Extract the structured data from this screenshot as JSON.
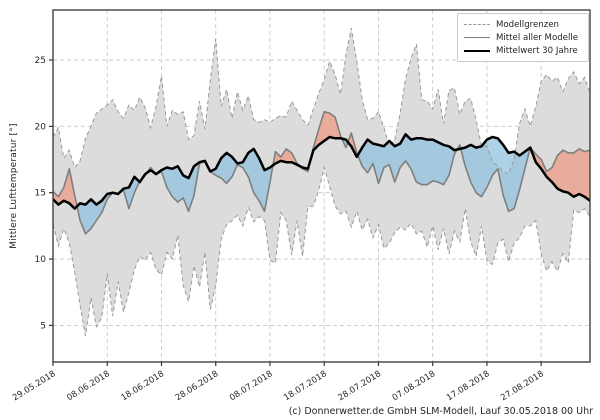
{
  "caption": "(c) Donnerwetter.de GmbH SLM-Modell, Lauf 30.05.2018 00 Uhr",
  "y_axis_label": "Mittlere Lufttemperatur [°]",
  "legend": {
    "items": [
      {
        "label": "Modellgrenzen",
        "style": "dashed-gray"
      },
      {
        "label": "Mittel aller Modelle",
        "style": "solid-gray"
      },
      {
        "label": "Mittelwert 30 Jahre",
        "style": "solid-black"
      }
    ]
  },
  "chart_data": {
    "type": "area",
    "title": "",
    "xlabel": "",
    "ylabel": "Mittlere Lufttemperatur [°]",
    "x_start_date": "29.05.2018",
    "x_tick_labels": [
      "29.05.2018",
      "08.06.2018",
      "18.06.2018",
      "28.06.2018",
      "08.07.2018",
      "18.07.2018",
      "28.07.2018",
      "07.08.2018",
      "17.08.2018",
      "27.08.2018"
    ],
    "x_tick_days": [
      0,
      10,
      20,
      30,
      40,
      50,
      60,
      70,
      80,
      90
    ],
    "xlim_days": [
      0,
      99
    ],
    "yticks": [
      5,
      10,
      15,
      20,
      25
    ],
    "ylim": [
      2.2,
      28.8
    ],
    "grid": true,
    "legend_position": "upper right",
    "colors": {
      "band": "#dcdcdc",
      "boundary": "#999999",
      "mean": "#7f7f7f",
      "mean30": "#000000",
      "above_normal": "#ee9c86",
      "below_normal": "#92c2dd",
      "grid": "#c9c9c9",
      "axis": "#333333"
    },
    "series": [
      {
        "name": "Modellgrenzen (oben)",
        "role": "max",
        "values": [
          19.2,
          19.9,
          17.6,
          18.2,
          16.9,
          17.4,
          19.1,
          20.0,
          21.0,
          21.3,
          21.6,
          22.0,
          21.1,
          20.6,
          21.6,
          21.2,
          22.2,
          21.4,
          19.9,
          21.5,
          23.8,
          20.0,
          21.2,
          20.9,
          21.1,
          19.0,
          19.3,
          21.9,
          19.8,
          23.5,
          26.6,
          21.5,
          22.8,
          20.6,
          22.6,
          21.2,
          22.3,
          20.5,
          20.3,
          20.5,
          20.3,
          20.6,
          20.8,
          20.7,
          21.9,
          21.2,
          20.5,
          20.1,
          21.3,
          22.5,
          23.5,
          24.9,
          23.9,
          22.4,
          25.4,
          27.4,
          24.9,
          22.0,
          20.5,
          20.6,
          21.1,
          19.9,
          18.5,
          19.0,
          21.0,
          23.6,
          25.1,
          26.2,
          22.0,
          21.9,
          21.3,
          22.8,
          20.2,
          22.7,
          22.9,
          20.9,
          21.9,
          22.1,
          20.5,
          18.5,
          18.5,
          17.4,
          17.0,
          16.6,
          16.4,
          17.5,
          20.2,
          21.3,
          20.0,
          21.5,
          23.4,
          23.9,
          23.4,
          23.7,
          22.6,
          23.6,
          24.1,
          23.2,
          23.7,
          22.5
        ]
      },
      {
        "name": "Modellgrenzen (unten)",
        "role": "min",
        "values": [
          12.6,
          11.0,
          12.3,
          11.2,
          9.0,
          6.5,
          4.2,
          7.1,
          4.9,
          5.6,
          8.9,
          5.7,
          8.3,
          6.0,
          7.5,
          9.2,
          10.2,
          9.9,
          10.5,
          9.2,
          8.8,
          10.5,
          10.0,
          11.8,
          8.0,
          6.8,
          9.5,
          7.9,
          10.5,
          6.2,
          8.0,
          11.5,
          12.6,
          12.9,
          13.3,
          12.5,
          13.9,
          12.8,
          13.2,
          12.9,
          9.9,
          9.7,
          13.5,
          12.9,
          10.3,
          12.9,
          10.2,
          13.9,
          14.0,
          15.2,
          16.9,
          15.5,
          14.0,
          13.4,
          13.6,
          12.4,
          13.6,
          12.2,
          13.0,
          11.6,
          12.6,
          10.8,
          11.2,
          12.0,
          12.4,
          12.2,
          12.7,
          11.9,
          12.1,
          10.9,
          12.5,
          10.7,
          12.3,
          10.4,
          12.1,
          11.3,
          13.8,
          11.3,
          10.2,
          12.5,
          9.9,
          9.6,
          11.2,
          11.5,
          9.8,
          11.2,
          11.6,
          12.5,
          12.5,
          12.9,
          10.4,
          9.1,
          9.8,
          9.1,
          10.4,
          9.7,
          13.7,
          13.5,
          13.8,
          13.2
        ]
      },
      {
        "name": "Mittel aller Modelle",
        "role": "mean",
        "values": [
          15.1,
          14.7,
          15.4,
          16.8,
          14.8,
          12.9,
          11.9,
          12.3,
          12.9,
          13.5,
          14.5,
          15.0,
          14.9,
          15.2,
          13.8,
          15.0,
          15.9,
          16.3,
          16.9,
          16.4,
          16.6,
          15.4,
          14.7,
          14.3,
          14.6,
          13.6,
          14.8,
          17.2,
          17.4,
          16.6,
          16.3,
          16.1,
          15.7,
          16.2,
          17.1,
          16.9,
          16.2,
          15.0,
          14.4,
          13.6,
          15.8,
          18.1,
          17.7,
          18.3,
          18.0,
          17.2,
          16.8,
          16.6,
          18.4,
          19.8,
          21.1,
          21.0,
          20.7,
          19.3,
          18.4,
          19.5,
          18.0,
          17.0,
          16.5,
          17.2,
          15.7,
          16.9,
          17.1,
          15.8,
          16.9,
          17.4,
          16.8,
          15.8,
          15.6,
          15.6,
          15.9,
          15.8,
          15.6,
          16.3,
          17.9,
          18.6,
          17.0,
          15.8,
          15.0,
          14.7,
          15.4,
          16.3,
          16.8,
          14.8,
          13.6,
          13.8,
          15.2,
          16.8,
          18.4,
          17.9,
          17.5,
          16.6,
          16.9,
          17.8,
          18.2,
          18.0,
          18.0,
          18.3,
          18.1,
          18.2
        ]
      },
      {
        "name": "Mittelwert 30 Jahre",
        "role": "mean30",
        "values": [
          14.5,
          14.1,
          14.4,
          14.2,
          13.8,
          14.2,
          14.1,
          14.5,
          14.1,
          14.4,
          14.9,
          15.0,
          14.9,
          15.3,
          15.4,
          16.2,
          15.8,
          16.4,
          16.7,
          16.4,
          16.7,
          16.9,
          16.8,
          17.0,
          16.3,
          16.1,
          17.0,
          17.3,
          17.4,
          16.6,
          16.8,
          17.6,
          18.0,
          17.7,
          17.2,
          17.3,
          18.0,
          18.3,
          17.6,
          16.7,
          16.9,
          17.2,
          17.4,
          17.3,
          17.3,
          17.1,
          16.9,
          16.8,
          18.2,
          18.6,
          18.9,
          19.2,
          19.1,
          19.1,
          19.0,
          18.5,
          17.7,
          18.4,
          19.0,
          18.7,
          18.6,
          18.5,
          18.9,
          18.5,
          18.7,
          19.4,
          19.0,
          19.1,
          19.1,
          19.0,
          19.0,
          18.8,
          18.6,
          18.5,
          18.2,
          18.3,
          18.4,
          18.6,
          18.4,
          18.5,
          19.0,
          19.2,
          19.1,
          18.6,
          18.0,
          18.1,
          17.8,
          18.1,
          18.4,
          17.3,
          16.8,
          16.2,
          15.8,
          15.3,
          15.1,
          15.0,
          14.7,
          14.9,
          14.7,
          14.4
        ]
      }
    ]
  }
}
